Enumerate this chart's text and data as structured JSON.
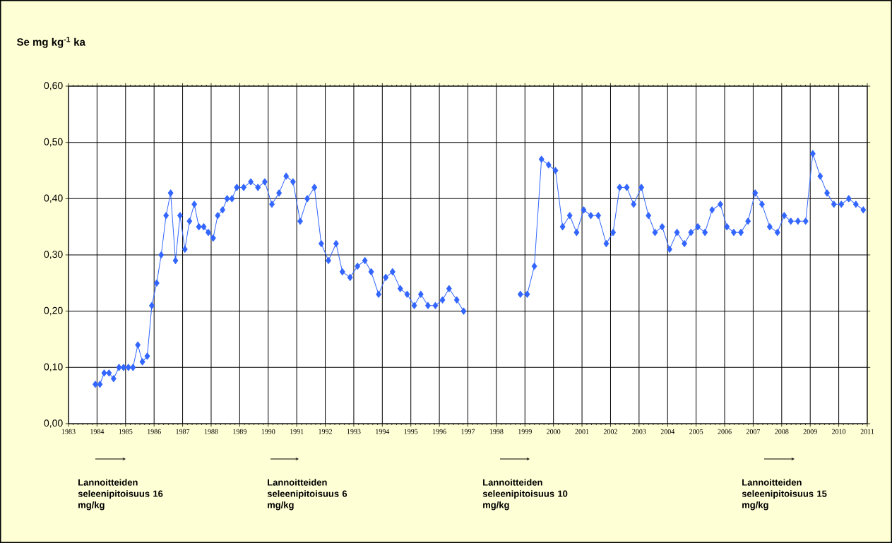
{
  "chart_data": {
    "type": "line",
    "title": "Se mg kg$^{-1}$ ka",
    "x": [
      1983.94,
      1984.1,
      1984.25,
      1984.42,
      1984.58,
      1984.77,
      1984.93,
      1985.1,
      1985.26,
      1985.43,
      1985.59,
      1985.76,
      1985.92,
      1986.09,
      1986.25,
      1986.42,
      1986.58,
      1986.75,
      1986.91,
      1987.08,
      1987.24,
      1987.41,
      1987.57,
      1987.74,
      1987.9,
      1988.07,
      1988.23,
      1988.4,
      1988.56,
      1988.73,
      1988.9,
      1989.14,
      1989.39,
      1989.64,
      1989.88,
      1990.13,
      1990.38,
      1990.63,
      1990.87,
      1991.12,
      1991.37,
      1991.62,
      1991.86,
      1992.11,
      1992.38,
      1992.6,
      1992.87,
      1993.13,
      1993.39,
      1993.61,
      1993.87,
      1994.12,
      1994.36,
      1994.63,
      1994.87,
      1995.12,
      1995.35,
      1995.6,
      1995.86,
      1996.11,
      1996.34,
      1996.61,
      1996.85,
      1997.85,
      1998.84,
      1999.08,
      1999.33,
      1999.58,
      1999.83,
      2000.07,
      2000.32,
      2000.57,
      2000.81,
      2001.06,
      2001.31,
      2001.57,
      2001.85,
      2002.09,
      2002.32,
      2002.57,
      2002.81,
      2003.08,
      2003.33,
      2003.56,
      2003.81,
      2004.07,
      2004.33,
      2004.59,
      2004.82,
      2005.06,
      2005.31,
      2005.56,
      2005.85,
      2006.08,
      2006.32,
      2006.57,
      2006.82,
      2007.07,
      2007.31,
      2007.58,
      2007.85,
      2008.09,
      2008.32,
      2008.57,
      2008.84,
      2009.09,
      2009.35,
      2009.59,
      2009.83,
      2010.09,
      2010.35,
      2010.6,
      2010.86
    ],
    "values": [
      0.07,
      0.07,
      0.09,
      0.09,
      0.08,
      0.1,
      0.1,
      0.1,
      0.1,
      0.14,
      0.11,
      0.12,
      0.21,
      0.25,
      0.3,
      0.37,
      0.41,
      0.29,
      0.37,
      0.31,
      0.36,
      0.39,
      0.35,
      0.35,
      0.34,
      0.33,
      0.37,
      0.38,
      0.4,
      0.4,
      0.42,
      0.42,
      0.43,
      0.42,
      0.43,
      0.39,
      0.41,
      0.44,
      0.43,
      0.36,
      0.4,
      0.42,
      0.32,
      0.29,
      0.32,
      0.27,
      0.26,
      0.28,
      0.29,
      0.27,
      0.23,
      0.26,
      0.27,
      0.24,
      0.23,
      0.21,
      0.23,
      0.21,
      0.21,
      0.22,
      0.24,
      0.22,
      0.2,
      null,
      0.23,
      0.23,
      0.28,
      0.47,
      0.46,
      0.45,
      0.35,
      0.37,
      0.34,
      0.38,
      0.37,
      0.37,
      0.32,
      0.34,
      0.42,
      0.42,
      0.39,
      0.42,
      0.37,
      0.34,
      0.35,
      0.31,
      0.34,
      0.32,
      0.34,
      0.35,
      0.34,
      0.38,
      0.39,
      0.35,
      0.34,
      0.34,
      0.36,
      0.41,
      0.39,
      0.35,
      0.34,
      0.37,
      0.36,
      0.36,
      0.36,
      0.48,
      0.44,
      0.41,
      0.39,
      0.39,
      0.4,
      0.39,
      0.38
    ],
    "color": "#3366ff",
    "marker": "diamond",
    "line_style": "solid",
    "grid": true,
    "xlim": [
      1983,
      2011
    ],
    "ylim": [
      0,
      0.6
    ],
    "xticks": [
      1983,
      1984,
      1985,
      1986,
      1987,
      1988,
      1989,
      1990,
      1991,
      1992,
      1993,
      1994,
      1995,
      1996,
      1997,
      1998,
      1999,
      2000,
      2001,
      2002,
      2003,
      2004,
      2005,
      2006,
      2007,
      2008,
      2009,
      2010,
      2011
    ],
    "yticks": [
      {
        "value": 0,
        "label": "0,00"
      },
      {
        "value": 0.1,
        "label": "0,10"
      },
      {
        "value": 0.2,
        "label": "0,20"
      },
      {
        "value": 0.3,
        "label": "0,30"
      },
      {
        "value": 0.4,
        "label": "0,40"
      },
      {
        "value": 0.5,
        "label": "0,50"
      },
      {
        "value": 0.6,
        "label": "0,60"
      }
    ],
    "annotations": [
      "Lannoitteiden seleenipitoisuus 16 mg/kg",
      "Lannoitteiden seleenipitoisuus 6 mg/kg",
      "Lannoitteiden seleenipitoisuus 10 mg/kg",
      "Lannoitteiden seleenipitoisuus 15 mg/kg"
    ]
  }
}
